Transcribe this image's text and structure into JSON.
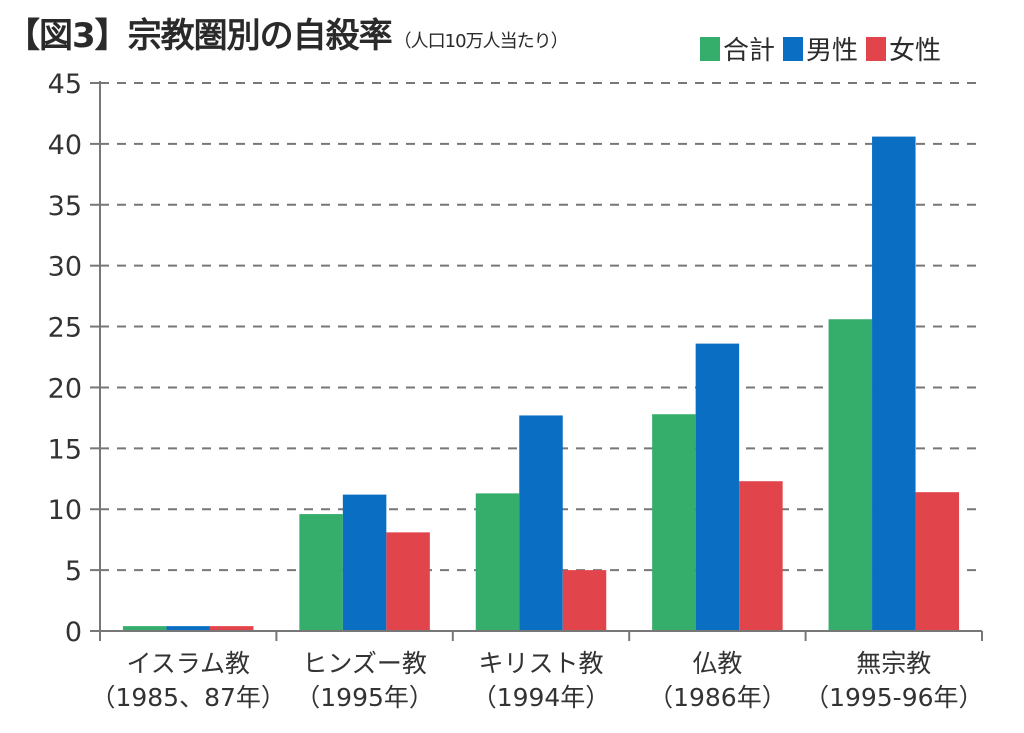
{
  "chart_data": {
    "type": "bar",
    "title": "【図3】宗教圏別の自殺率",
    "subtitle": "（人口10万人当たり）",
    "xlabel": "",
    "ylabel": "",
    "ylim": [
      0,
      45
    ],
    "yticks": [
      0,
      5,
      10,
      15,
      20,
      25,
      30,
      35,
      40,
      45
    ],
    "grid": true,
    "grid_style": "dashed",
    "legend_position": "top-right",
    "categories": [
      "イスラム教",
      "ヒンズー教",
      "キリスト教",
      "仏教",
      "無宗教"
    ],
    "category_periods": [
      "（1985、87年）",
      "（1995年）",
      "（1994年）",
      "（1986年）",
      "（1995-96年）"
    ],
    "series": [
      {
        "name": "合計",
        "color": "#35ad6b",
        "values": [
          0.4,
          9.6,
          11.3,
          17.8,
          25.6
        ]
      },
      {
        "name": "男性",
        "color": "#0a6fc2",
        "values": [
          0.4,
          11.2,
          17.7,
          23.6,
          40.6
        ]
      },
      {
        "name": "女性",
        "color": "#e2444c",
        "values": [
          0.4,
          8.1,
          5.0,
          12.3,
          11.4
        ]
      }
    ]
  }
}
